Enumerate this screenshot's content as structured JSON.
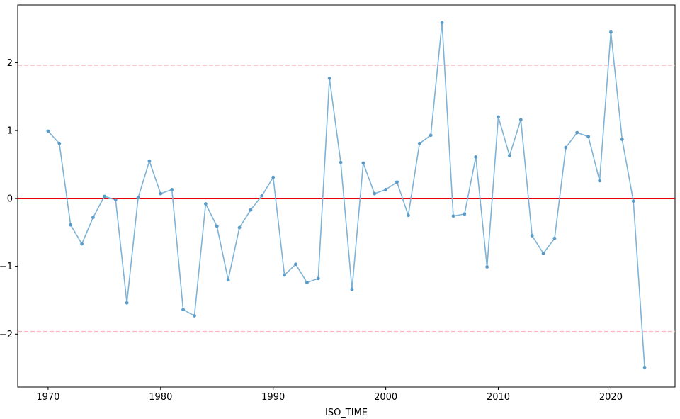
{
  "chart_data": {
    "type": "line",
    "title": "",
    "xlabel": "ISO_TIME",
    "ylabel": "",
    "xlim": [
      1967.3,
      2025.7
    ],
    "ylim": [
      -2.78,
      2.85
    ],
    "xticks": [
      1970,
      1980,
      1990,
      2000,
      2010,
      2020
    ],
    "yticks": [
      -2,
      -1,
      0,
      1,
      2
    ],
    "grid": false,
    "legend": "none",
    "series": [
      {
        "color": "#7fb3d5",
        "marker_color": "#5b9bc8",
        "x": [
          1970,
          1971,
          1972,
          1973,
          1974,
          1975,
          1976,
          1977,
          1978,
          1979,
          1980,
          1981,
          1982,
          1983,
          1984,
          1985,
          1986,
          1987,
          1988,
          1989,
          1990,
          1991,
          1992,
          1993,
          1994,
          1995,
          1996,
          1997,
          1998,
          1999,
          2000,
          2001,
          2002,
          2003,
          2004,
          2005,
          2006,
          2007,
          2008,
          2009,
          2010,
          2011,
          2012,
          2013,
          2014,
          2015,
          2016,
          2017,
          2018,
          2019,
          2020,
          2021,
          2022,
          2023
        ],
        "y": [
          0.99,
          0.81,
          -0.39,
          -0.67,
          -0.28,
          0.03,
          -0.02,
          -1.54,
          0.01,
          0.55,
          0.07,
          0.13,
          -1.64,
          -1.73,
          -0.08,
          -0.41,
          -1.2,
          -0.43,
          -0.17,
          0.04,
          0.31,
          -1.13,
          -0.97,
          -1.24,
          -1.18,
          1.77,
          0.53,
          -1.34,
          0.52,
          0.07,
          0.13,
          0.24,
          -0.25,
          0.81,
          0.93,
          2.59,
          -0.26,
          -0.23,
          0.61,
          -1.01,
          1.2,
          0.63,
          1.16,
          -0.55,
          -0.81,
          -0.59,
          0.75,
          0.97,
          0.91,
          0.26,
          2.45,
          0.87,
          -0.04,
          -2.49
        ]
      }
    ],
    "reference_lines": [
      {
        "y": 0,
        "color": "#e8000b",
        "style": "solid"
      },
      {
        "y": 1.96,
        "color": "#ffb6c1",
        "style": "dashed"
      },
      {
        "y": -1.96,
        "color": "#ffb6c1",
        "style": "dashed"
      }
    ]
  }
}
